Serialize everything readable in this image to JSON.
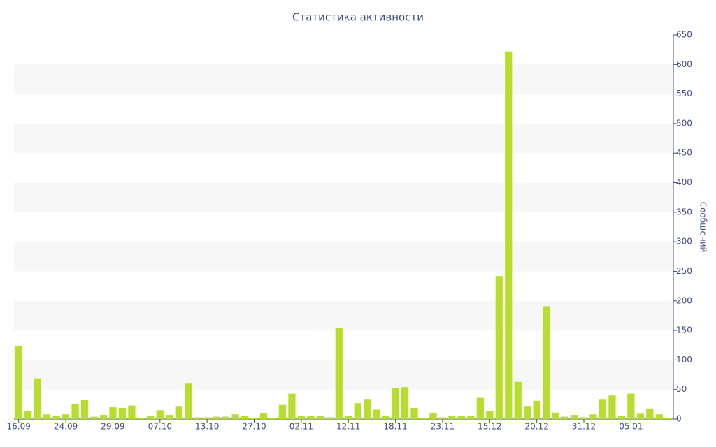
{
  "chart_data": {
    "type": "bar",
    "title": "Статистика активности",
    "y_axis_label": "Сообщений",
    "categories": [
      "16.09",
      null,
      null,
      null,
      null,
      "24.09",
      null,
      null,
      null,
      null,
      "29.09",
      null,
      null,
      null,
      null,
      "07.10",
      null,
      null,
      null,
      null,
      "13.10",
      null,
      null,
      null,
      null,
      "27.10",
      null,
      null,
      null,
      null,
      "02.11",
      null,
      null,
      null,
      null,
      "12.11",
      null,
      null,
      null,
      null,
      "18.11",
      null,
      null,
      null,
      null,
      "23.11",
      null,
      null,
      null,
      null,
      "15.12",
      null,
      null,
      null,
      null,
      "20.12",
      null,
      null,
      null,
      null,
      "31.12",
      null,
      null,
      null,
      null,
      "05.01",
      null,
      null,
      null,
      null
    ],
    "values": [
      124,
      14,
      69,
      8,
      5,
      8,
      26,
      33,
      4,
      7,
      20,
      19,
      23,
      2,
      6,
      15,
      7,
      21,
      60,
      3,
      3,
      4,
      4,
      8,
      5,
      2,
      10,
      2,
      24,
      43,
      6,
      5,
      5,
      3,
      154,
      5,
      27,
      34,
      16,
      6,
      52,
      54,
      19,
      2,
      10,
      3,
      6,
      5,
      5,
      36,
      13,
      242,
      622,
      63,
      21,
      31,
      191,
      11,
      4,
      7,
      3,
      8,
      34,
      40,
      5,
      43,
      9,
      18,
      8,
      2
    ],
    "color": "#b6de2c",
    "ylim": [
      0,
      650
    ],
    "yticks": [
      0,
      50,
      100,
      150,
      200,
      250,
      300,
      350,
      400,
      450,
      500,
      550,
      600,
      650
    ],
    "grid": "bands",
    "y_axis_side": "right"
  }
}
